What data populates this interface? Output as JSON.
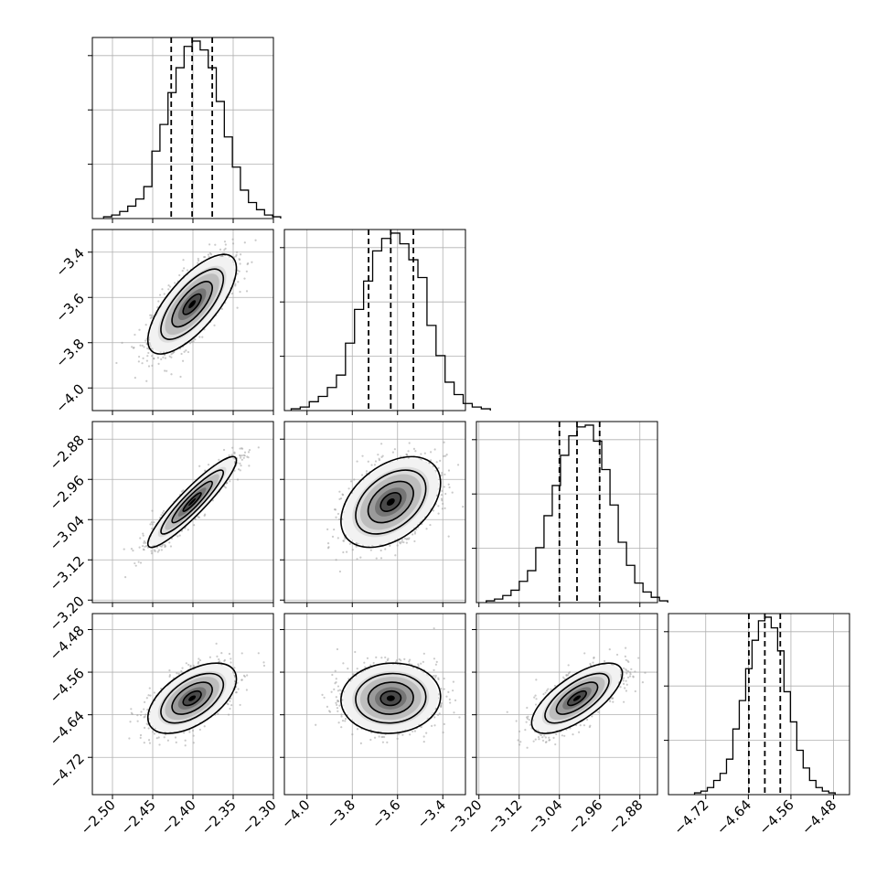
{
  "chart_data": {
    "type": "corner",
    "parameters": [
      {
        "range": [
          -2.525,
          -2.3
        ],
        "ticks": [
          "-2.50",
          "-2.45",
          "-2.40",
          "-2.35",
          "-2.30"
        ],
        "tick_values": [
          -2.5,
          -2.45,
          -2.4,
          -2.35,
          -2.3
        ],
        "quantiles": [
          -2.427,
          -2.401,
          -2.376
        ],
        "median": -2.401,
        "sigma": 0.025,
        "hist_counts": [
          1,
          2,
          4,
          7,
          11,
          18,
          38,
          53,
          71,
          85,
          97,
          100,
          95,
          85,
          66,
          46,
          29,
          16,
          9,
          5,
          2,
          1
        ]
      },
      {
        "range": [
          -4.1,
          -3.3
        ],
        "ticks": [
          "-4.0",
          "-3.8",
          "-3.6",
          "-3.4"
        ],
        "tick_values": [
          -4.0,
          -3.8,
          -3.6,
          -3.4
        ],
        "quantiles": [
          -3.728,
          -3.63,
          -3.53
        ],
        "median": -3.63,
        "sigma": 0.1,
        "hist_counts": [
          1,
          2,
          5,
          8,
          13,
          20,
          38,
          57,
          73,
          90,
          97,
          100,
          94,
          85,
          75,
          48,
          31,
          16,
          9,
          4,
          2,
          1
        ]
      },
      {
        "range": [
          -3.205,
          -2.845
        ],
        "ticks": [
          "-3.20",
          "-3.12",
          "-3.04",
          "-2.96",
          "-2.88"
        ],
        "tick_values": [
          -3.2,
          -3.12,
          -3.04,
          -2.96,
          -2.88
        ],
        "quantiles": [
          -3.04,
          -3.005,
          -2.96
        ],
        "median": -3.005,
        "sigma": 0.041,
        "hist_counts": [
          1,
          2,
          4,
          7,
          12,
          18,
          31,
          49,
          66,
          83,
          94,
          99,
          100,
          91,
          75,
          55,
          34,
          21,
          11,
          6,
          3,
          1
        ]
      },
      {
        "range": [
          -4.79,
          -4.45
        ],
        "ticks": [
          "-4.72",
          "-4.64",
          "-4.56",
          "-4.48"
        ],
        "tick_values": [
          -4.72,
          -4.64,
          -4.56,
          -4.48
        ],
        "quantiles": [
          -4.639,
          -4.609,
          -4.58
        ],
        "median": -4.609,
        "sigma": 0.03,
        "hist_counts": [
          1,
          2,
          4,
          8,
          12,
          20,
          37,
          53,
          71,
          87,
          98,
          100,
          94,
          81,
          58,
          41,
          25,
          15,
          8,
          4,
          2,
          1
        ]
      }
    ],
    "correlations": [
      {
        "i": 1,
        "j": 0,
        "rho": 0.72
      },
      {
        "i": 2,
        "j": 0,
        "rho": 0.92
      },
      {
        "i": 2,
        "j": 1,
        "rho": 0.42
      },
      {
        "i": 3,
        "j": 0,
        "rho": 0.55
      },
      {
        "i": 3,
        "j": 1,
        "rho": 0.05
      },
      {
        "i": 3,
        "j": 2,
        "rho": 0.7
      }
    ],
    "grid": true,
    "colors": {
      "points": "#9e9e9e",
      "contour": "#000000",
      "density_dark": "#000000",
      "density_light": "#bdbdbd",
      "grid": "#b0b0b0"
    }
  }
}
